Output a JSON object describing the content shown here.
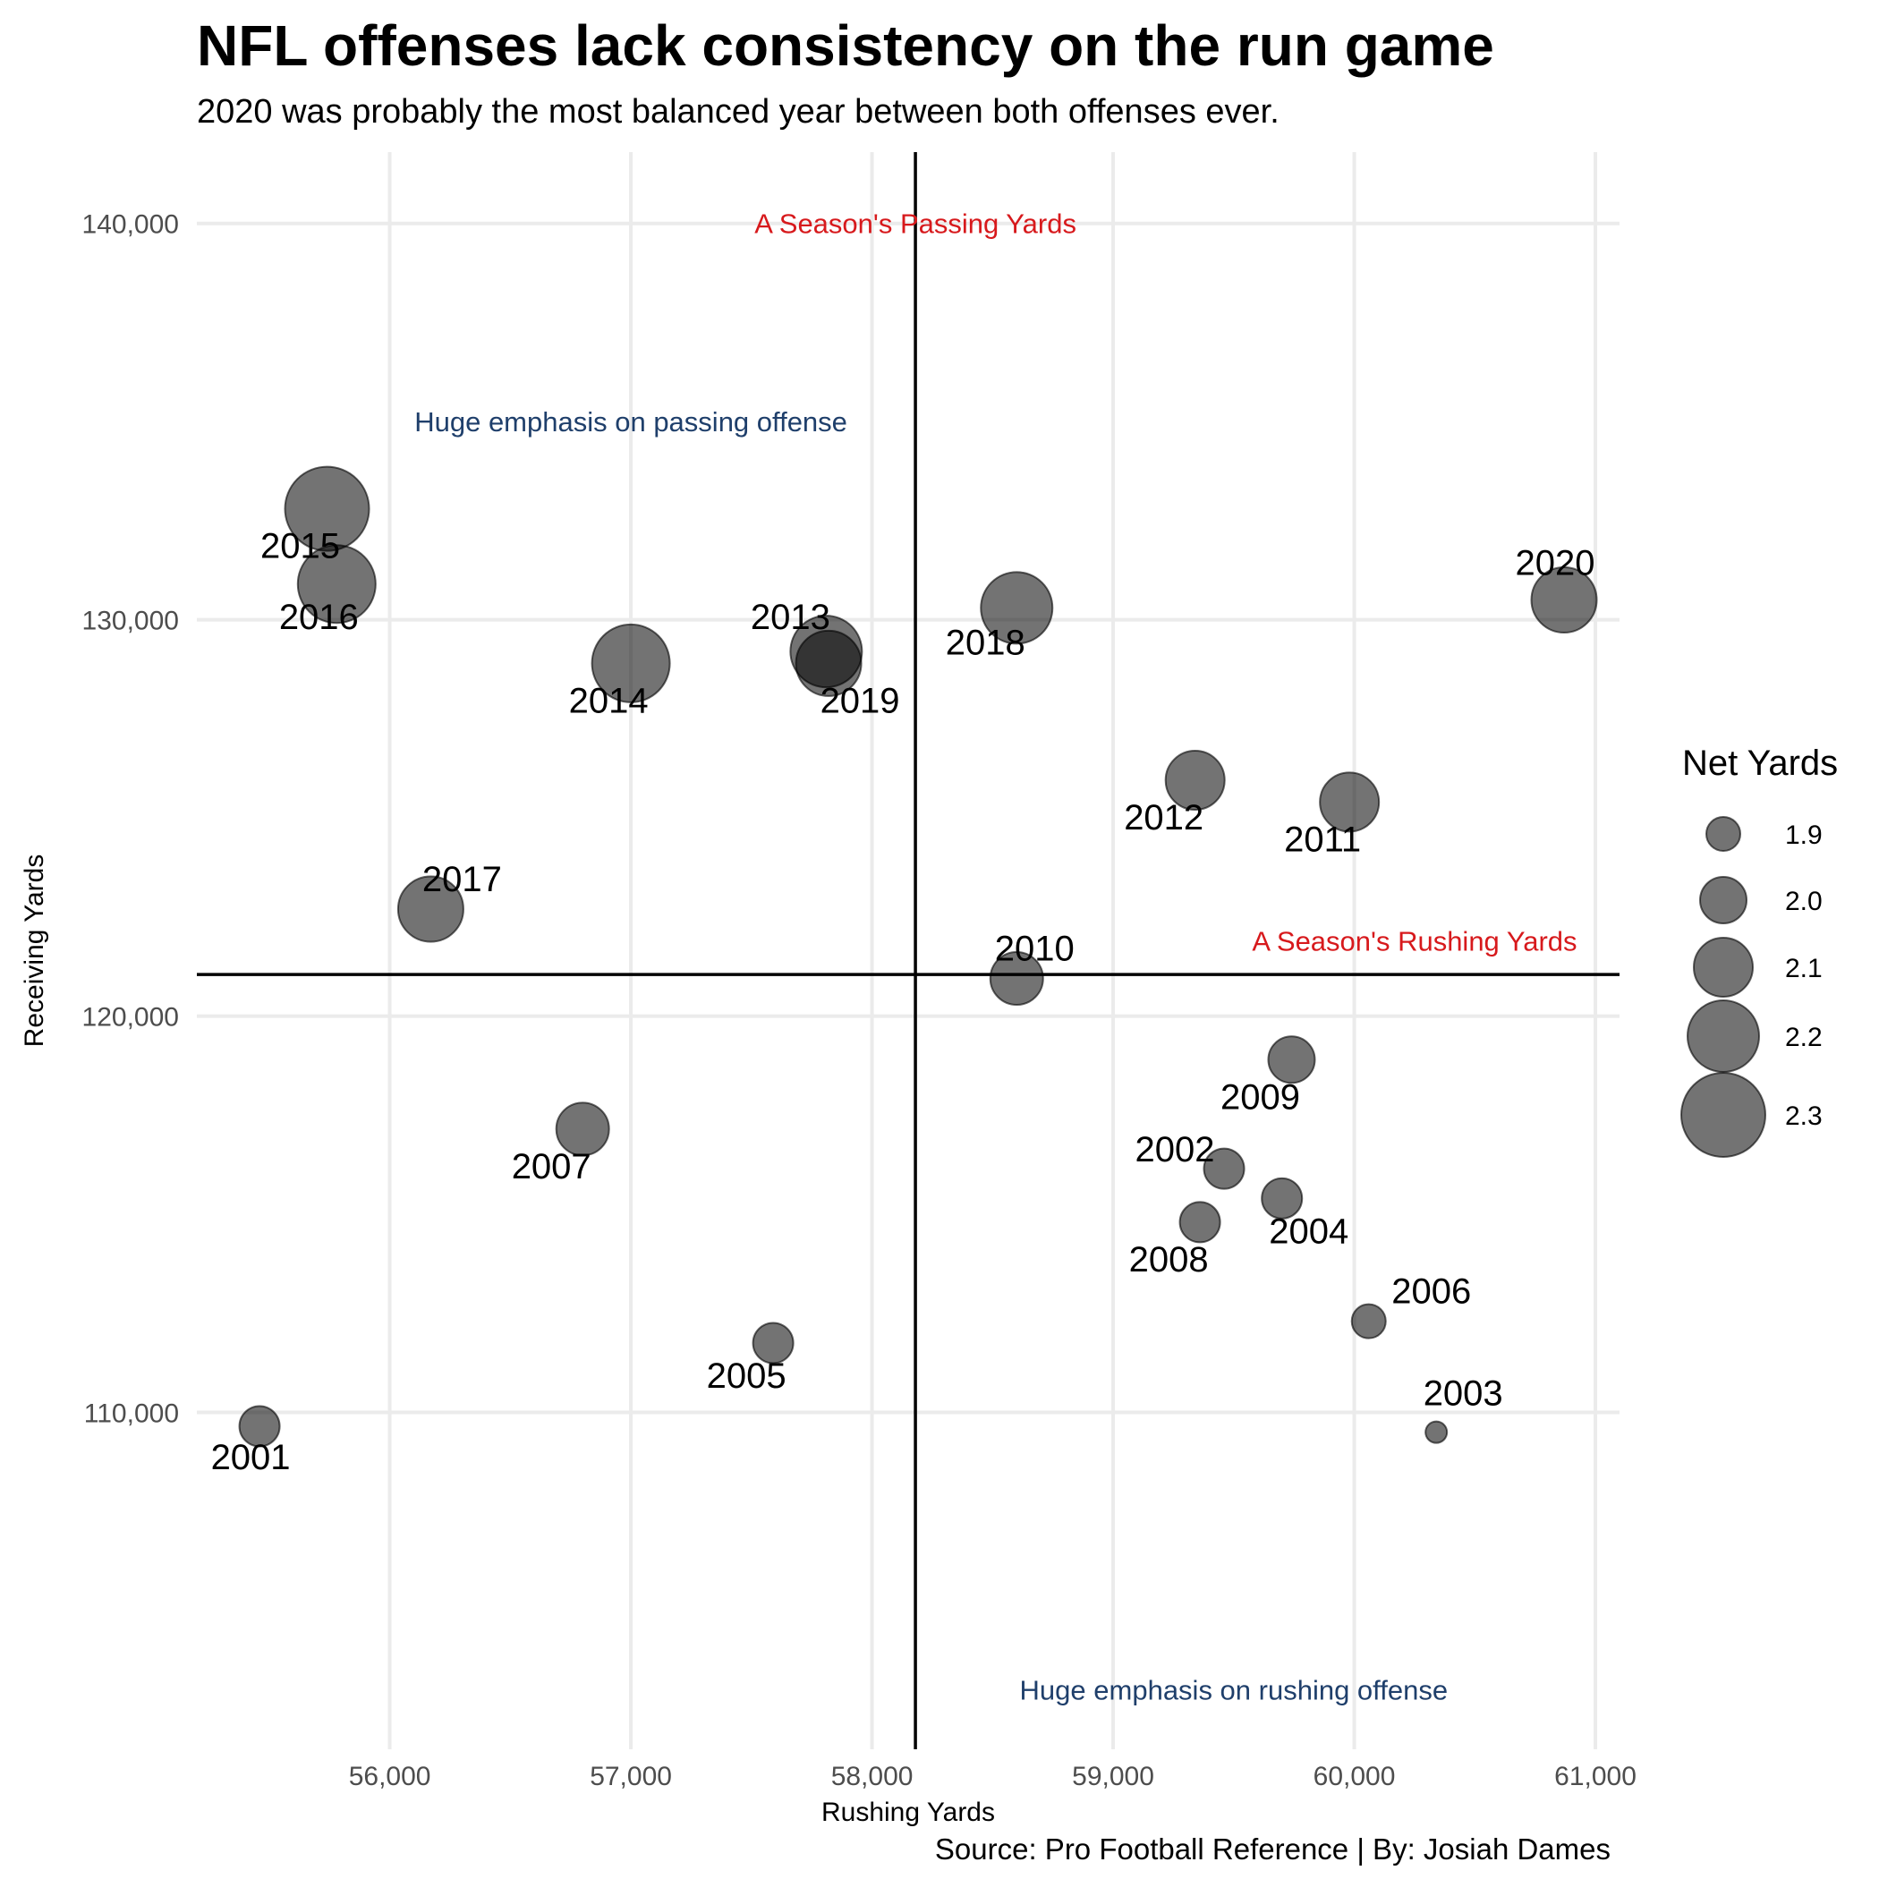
{
  "chart_data": {
    "type": "scatter",
    "title": "NFL offenses lack consistency on the run game",
    "subtitle": "2020 was probably the most balanced year between both offenses ever.",
    "xlabel": "Rushing Yards",
    "ylabel": "Receiving Yards",
    "caption": "Source: Pro Football Reference | By: Josiah Dames",
    "xlim": [
      55200,
      61100
    ],
    "ylim": [
      101500,
      141800
    ],
    "x_ticks": [
      56000,
      57000,
      58000,
      59000,
      60000,
      61000
    ],
    "x_tick_labels": [
      "56,000",
      "57,000",
      "58,000",
      "59,000",
      "60,000",
      "61,000"
    ],
    "y_ticks": [
      110000,
      120000,
      130000,
      140000
    ],
    "y_tick_labels": [
      "110,000",
      "120,000",
      "130,000",
      "140,000"
    ],
    "grid": true,
    "reference_lines": {
      "vertical_x": 58180,
      "horizontal_y": 121050
    },
    "size_legend": {
      "title": "Net Yards",
      "placement": "right",
      "values": [
        1.9,
        2.0,
        2.1,
        2.2,
        2.3
      ],
      "labels": [
        "1.9",
        "2.0",
        "2.1",
        "2.2",
        "2.3"
      ]
    },
    "annotations": [
      {
        "text": "A Season's Passing Yards",
        "x": 58180,
        "y": 140000,
        "color": "#d7191c"
      },
      {
        "text": "A Season's Rushing Yards",
        "x": 60250,
        "y": 121900,
        "color": "#d7191c"
      },
      {
        "text": "Huge emphasis on passing offense",
        "x": 57000,
        "y": 135000,
        "color": "#1f3f6b"
      },
      {
        "text": "Huge emphasis on rushing offense",
        "x": 59500,
        "y": 103000,
        "color": "#1f3f6b"
      }
    ],
    "points": [
      {
        "label": "2001",
        "x": 55460,
        "y": 109650,
        "size": 1.95
      },
      {
        "label": "2002",
        "x": 59460,
        "y": 116150,
        "size": 1.95
      },
      {
        "label": "2003",
        "x": 60340,
        "y": 109500,
        "size": 1.8
      },
      {
        "label": "2004",
        "x": 59700,
        "y": 115400,
        "size": 1.95
      },
      {
        "label": "2005",
        "x": 57590,
        "y": 111750,
        "size": 1.95
      },
      {
        "label": "2006",
        "x": 60060,
        "y": 112300,
        "size": 1.9
      },
      {
        "label": "2007",
        "x": 56800,
        "y": 117150,
        "size": 2.05
      },
      {
        "label": "2008",
        "x": 59360,
        "y": 114800,
        "size": 1.95
      },
      {
        "label": "2009",
        "x": 59740,
        "y": 118900,
        "size": 2.0
      },
      {
        "label": "2010",
        "x": 58600,
        "y": 120950,
        "size": 2.05
      },
      {
        "label": "2011",
        "x": 59980,
        "y": 125400,
        "size": 2.1
      },
      {
        "label": "2012",
        "x": 59340,
        "y": 125950,
        "size": 2.1
      },
      {
        "label": "2013",
        "x": 57810,
        "y": 129200,
        "size": 2.2
      },
      {
        "label": "2014",
        "x": 57000,
        "y": 128900,
        "size": 2.25
      },
      {
        "label": "2015",
        "x": 55740,
        "y": 132800,
        "size": 2.3
      },
      {
        "label": "2016",
        "x": 55780,
        "y": 130900,
        "size": 2.25
      },
      {
        "label": "2017",
        "x": 56170,
        "y": 122700,
        "size": 2.15
      },
      {
        "label": "2018",
        "x": 58600,
        "y": 130300,
        "size": 2.2
      },
      {
        "label": "2019",
        "x": 57820,
        "y": 128900,
        "size": 2.15
      },
      {
        "label": "2020",
        "x": 60870,
        "y": 130500,
        "size": 2.15
      }
    ]
  }
}
